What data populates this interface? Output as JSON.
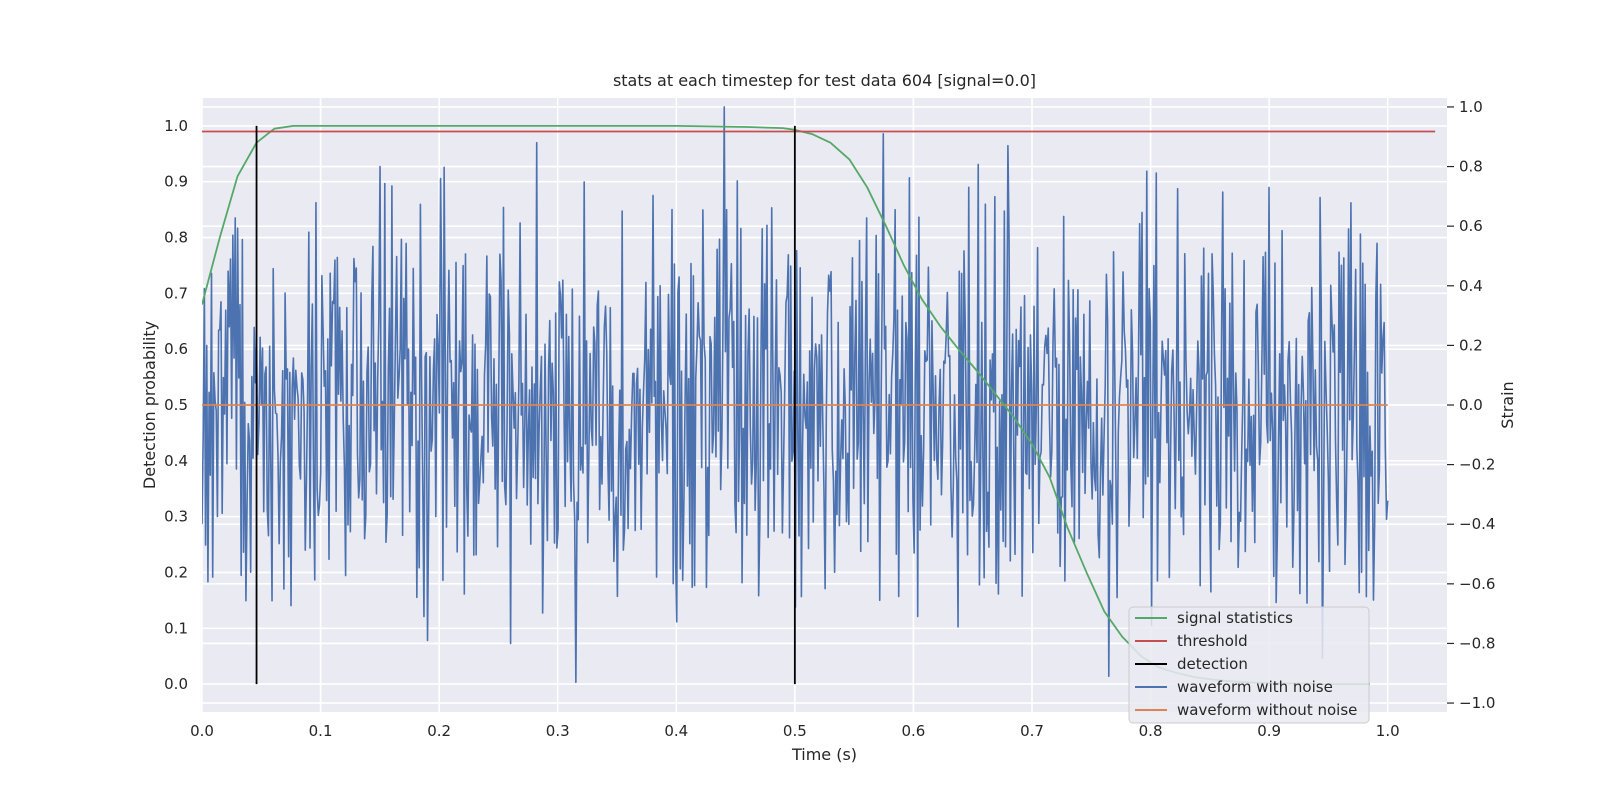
{
  "chart_data": {
    "type": "line",
    "title": "stats at each timestep for test data 604 [signal=0.0]",
    "xlabel": "Time (s)",
    "ylabel_left": "Detection probability",
    "ylabel_right": "Strain",
    "xlim": [
      0.0,
      1.05
    ],
    "ylim_left": [
      -0.05,
      1.05
    ],
    "ylim_right": [
      -1.03,
      1.03
    ],
    "x_ticks": [
      0.0,
      0.1,
      0.2,
      0.3,
      0.4,
      0.5,
      0.6,
      0.7,
      0.8,
      0.9,
      1.0
    ],
    "y_ticks_left": [
      0.0,
      0.1,
      0.2,
      0.3,
      0.4,
      0.5,
      0.6,
      0.7,
      0.8,
      0.9,
      1.0
    ],
    "y_ticks_right": [
      -1.0,
      -0.8,
      -0.6,
      -0.4,
      -0.2,
      0.0,
      0.2,
      0.4,
      0.6,
      0.8,
      1.0
    ],
    "x_tick_labels": [
      "0.0",
      "0.1",
      "0.2",
      "0.3",
      "0.4",
      "0.5",
      "0.6",
      "0.7",
      "0.8",
      "0.9",
      "1.0"
    ],
    "y_tick_labels_left": [
      "0.0",
      "0.1",
      "0.2",
      "0.3",
      "0.4",
      "0.5",
      "0.6",
      "0.7",
      "0.8",
      "0.9",
      "1.0"
    ],
    "y_tick_labels_right": [
      "−1.0",
      "−0.8",
      "−0.6",
      "−0.4",
      "−0.2",
      "0.0",
      "0.2",
      "0.4",
      "0.6",
      "0.8",
      "1.0"
    ],
    "grid": true,
    "background": "#eaeaf2",
    "legend_position": "lower-right",
    "series": [
      {
        "name": "signal statistics",
        "axis": "left",
        "color": "#55a868",
        "x": [
          0.0,
          0.015,
          0.03,
          0.046,
          0.061,
          0.077,
          0.092,
          0.2,
          0.3,
          0.4,
          0.46,
          0.49,
          0.5,
          0.515,
          0.53,
          0.546,
          0.561,
          0.577,
          0.592,
          0.607,
          0.623,
          0.638,
          0.654,
          0.669,
          0.684,
          0.7,
          0.715,
          0.73,
          0.746,
          0.761,
          0.776,
          0.792,
          0.807,
          0.822,
          0.838,
          0.853,
          0.868,
          0.884,
          0.899,
          0.914,
          0.93,
          0.945,
          0.96,
          0.976,
          0.985
        ],
        "y": [
          0.68,
          0.8,
          0.91,
          0.97,
          0.995,
          1.0,
          1.0,
          1.0,
          1.0,
          1.0,
          0.998,
          0.996,
          0.993,
          0.985,
          0.97,
          0.94,
          0.89,
          0.82,
          0.75,
          0.69,
          0.64,
          0.6,
          0.56,
          0.52,
          0.48,
          0.43,
          0.37,
          0.28,
          0.2,
          0.13,
          0.085,
          0.05,
          0.03,
          0.02,
          0.012,
          0.008,
          0.005,
          0.003,
          0.002,
          0.001,
          0.001,
          0.0,
          0.0,
          0.0,
          0.0
        ]
      },
      {
        "name": "threshold",
        "axis": "left",
        "color": "#c44e52",
        "x": [
          0.0,
          1.04
        ],
        "y": [
          0.99,
          0.99
        ]
      },
      {
        "name": "detection",
        "axis": "left",
        "color": "#000000",
        "type": "vlines",
        "x": [
          0.046,
          0.5
        ],
        "ymin": 0.0,
        "ymax": 1.0
      },
      {
        "name": "waveform with noise",
        "axis": "right",
        "color": "#4c72b0",
        "x_start": 0.0,
        "x_end": 1.0,
        "y": [
          -0.51,
          0.52,
          0.16,
          -0.44,
          0.83,
          -0.43,
          -0.07,
          -0.21,
          0.14,
          -0.36,
          0.48,
          -0.12,
          0.3,
          -0.35,
          0.09,
          -0.27,
          0.22,
          -0.05,
          0.41,
          -0.32,
          0.03,
          -0.47,
          0.56,
          -0.2,
          0.06,
          -0.39,
          0.36,
          -0.29,
          0.31,
          -0.08,
          0.54,
          -0.43,
          0.02,
          -0.25,
          0.37,
          -0.13,
          0.2,
          -0.49,
          0.1,
          -0.18,
          0.29,
          -0.4,
          0.44,
          -0.06,
          0.16,
          -0.24,
          0.6,
          -0.34,
          0.04,
          -0.16
        ],
        "peaks_note": ""
      },
      {
        "name": "waveform without noise",
        "axis": "right",
        "color": "#dd8452",
        "x": [
          0.0,
          1.0
        ],
        "y": [
          0.0,
          0.0
        ]
      }
    ]
  }
}
